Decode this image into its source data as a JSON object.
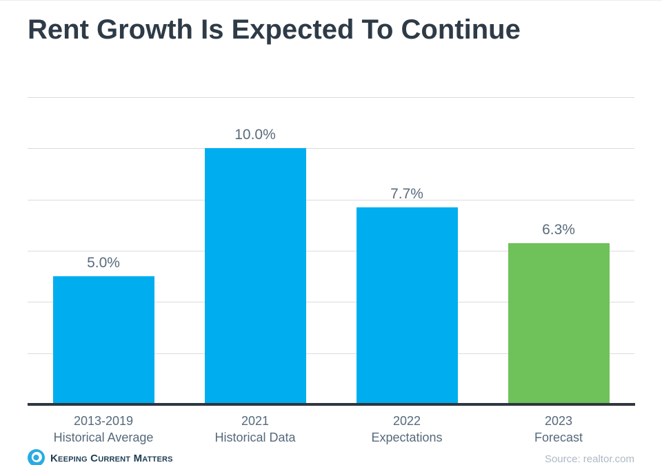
{
  "page": {
    "title": "Rent Growth Is Expected To Continue"
  },
  "chart_data": {
    "type": "bar",
    "title": "Rent Growth Is Expected To Continue",
    "xlabel": "",
    "ylabel": "",
    "unit": "%",
    "ylim": [
      0,
      12
    ],
    "grid_interval": 2,
    "grid": "horizontal gridlines every 2%, no y-axis tick labels",
    "legend": "none",
    "categories": [
      "2013-2019 Historical Average",
      "2021 Historical Data",
      "2022 Expectations",
      "2023 Forecast"
    ],
    "category_lines": [
      [
        "2013-2019",
        "Historical Average"
      ],
      [
        "2021",
        "Historical Data"
      ],
      [
        "2022",
        "Expectations"
      ],
      [
        "2023",
        "Forecast"
      ]
    ],
    "values": [
      5.0,
      10.0,
      7.7,
      6.3
    ],
    "value_labels": [
      "5.0%",
      "10.0%",
      "7.7%",
      "6.3%"
    ],
    "bar_colors": [
      "#00AEEF",
      "#00AEEF",
      "#00AEEF",
      "#6FC15A"
    ]
  },
  "footer": {
    "logo_text": "Keeping Current Matters",
    "source_text": "Source: realtor.com"
  },
  "colors": {
    "title": "#2E3B47",
    "value_label": "#5A6B7C",
    "category_label": "#56697B",
    "gridline": "#DBDBDB",
    "axis_line": "#2E3640",
    "bar_blue": "#00AEEF",
    "bar_green": "#6FC15A",
    "logo_blue": "#29ABE2",
    "logo_navy": "#1D3D52",
    "source": "#ADB9C4"
  }
}
